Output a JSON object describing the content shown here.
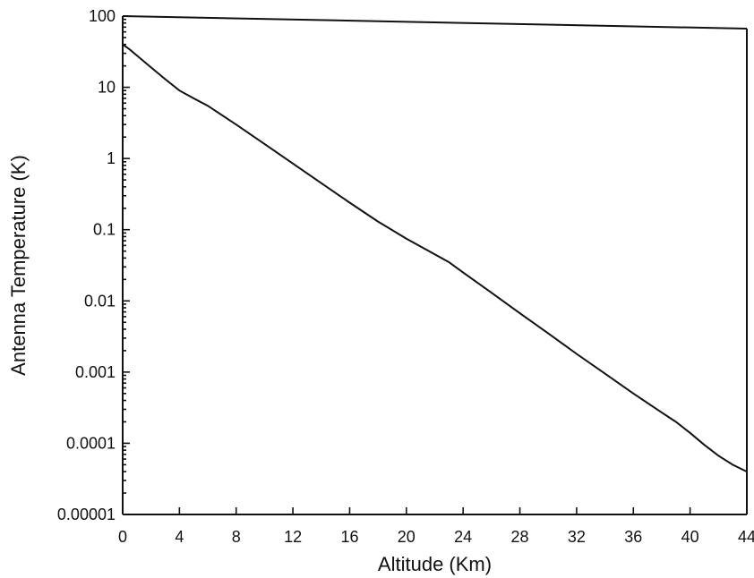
{
  "chart_data": {
    "type": "line",
    "title": "",
    "xlabel": "Altitude (Km)",
    "ylabel": "Antenna Temperature (K)",
    "xscale": "linear",
    "yscale": "log",
    "xlim": [
      0,
      44
    ],
    "ylim": [
      1e-05,
      100
    ],
    "grid": false,
    "legend": "none",
    "x_ticks": [
      0,
      4,
      8,
      12,
      16,
      20,
      24,
      28,
      32,
      36,
      40,
      44
    ],
    "x_tick_labels": [
      "0",
      "4",
      "8",
      "12",
      "16",
      "20",
      "24",
      "28",
      "32",
      "36",
      "40",
      "44"
    ],
    "y_ticks": [
      1e-05,
      0.0001,
      0.001,
      0.01,
      0.1,
      1,
      10,
      100
    ],
    "y_tick_labels": [
      "0.00001",
      "0.0001",
      "0.001",
      "0.01",
      "0.1",
      "1",
      "10",
      "100"
    ],
    "series": [
      {
        "x": [
          0,
          0.5,
          1,
          2,
          3,
          4,
          5,
          6,
          8,
          10,
          12,
          14,
          16,
          18,
          20,
          22,
          23,
          24,
          26,
          28,
          30,
          32,
          34,
          36,
          38,
          39,
          40,
          41,
          42,
          43,
          44
        ],
        "y": [
          40,
          34,
          28,
          19,
          13,
          9,
          7,
          5.5,
          3,
          1.6,
          0.85,
          0.45,
          0.24,
          0.13,
          0.075,
          0.045,
          0.035,
          0.025,
          0.013,
          0.0067,
          0.0035,
          0.0018,
          0.00095,
          0.0005,
          0.00027,
          0.0002,
          0.00014,
          9.5e-05,
          6.7e-05,
          5e-05,
          4e-05
        ]
      }
    ]
  }
}
